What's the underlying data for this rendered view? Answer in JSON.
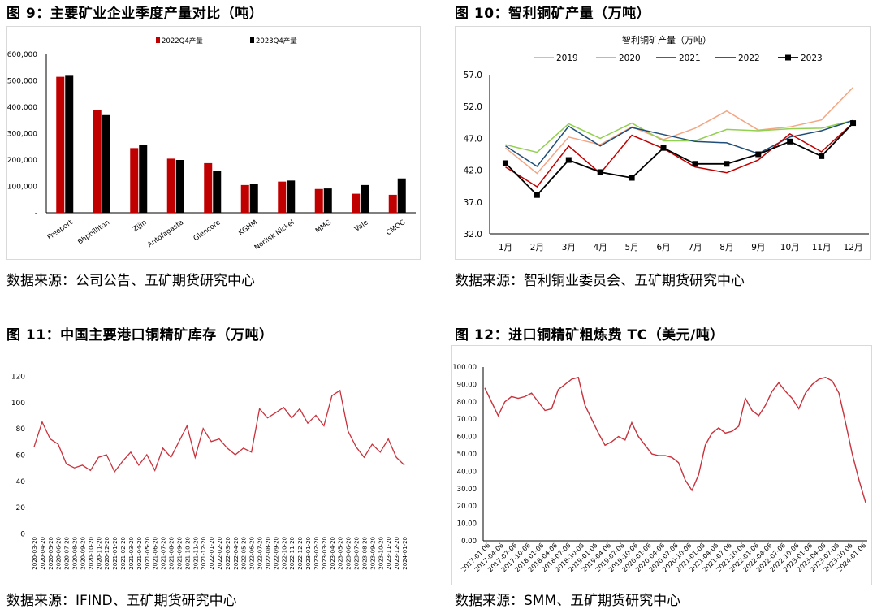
{
  "panels": [
    {
      "title": "图 9：主要矿业企业季度产量对比（吨）",
      "source": "数据来源：公司公告、五矿期货研究中心"
    },
    {
      "title": "图 10：智利铜矿产量（万吨）",
      "source": "数据来源：智利铜业委员会、五矿期货研究中心"
    },
    {
      "title": "图 11：中国主要港口铜精矿库存（万吨）",
      "source": "数据来源：IFIND、五矿期货研究中心"
    },
    {
      "title": "图 12：进口铜精矿粗炼费 TC（美元/吨）",
      "source": "数据来源：SMM、五矿期货研究中心"
    }
  ],
  "colors": {
    "red": "#c00000",
    "black": "#000000",
    "c2019": "#f4a582",
    "c2020": "#92d050",
    "c2021": "#1f4e79",
    "c2022": "#c00000",
    "c2023": "#000000",
    "line": "#c8323c"
  },
  "chart_data": [
    {
      "type": "bar",
      "title": "",
      "categories": [
        "Freeport",
        "Bhpbilliton",
        "Zijin",
        "Antofagasta",
        "Glencore",
        "KGHM",
        "Norilsk Nickel",
        "MMG",
        "Vale",
        "CMOC"
      ],
      "series": [
        {
          "name": "2022Q4产量",
          "values": [
            515000,
            390000,
            245000,
            205000,
            188000,
            105000,
            118000,
            90000,
            72000,
            68000
          ]
        },
        {
          "name": "2023Q4产量",
          "values": [
            522000,
            370000,
            256000,
            200000,
            160000,
            108000,
            122000,
            92000,
            105000,
            130000
          ]
        }
      ],
      "yticks": [
        "-",
        "100,000",
        "200,000",
        "300,000",
        "400,000",
        "500,000",
        "600,000"
      ],
      "ylim": [
        0,
        600000
      ],
      "legend": "top"
    },
    {
      "type": "line",
      "title": "智利铜矿产量（万吨）",
      "categories": [
        "1月",
        "2月",
        "3月",
        "4月",
        "5月",
        "6月",
        "7月",
        "8月",
        "9月",
        "10月",
        "11月",
        "12月"
      ],
      "series": [
        {
          "name": "2019",
          "values": [
            45.5,
            41.5,
            47.2,
            46.0,
            48.8,
            46.8,
            48.6,
            51.3,
            48.3,
            48.8,
            49.9,
            55.0
          ]
        },
        {
          "name": "2020",
          "values": [
            46.0,
            44.8,
            49.3,
            47.0,
            49.4,
            46.6,
            46.6,
            48.4,
            48.2,
            48.5,
            48.6,
            49.8
          ]
        },
        {
          "name": "2021",
          "values": [
            45.8,
            42.6,
            48.9,
            45.8,
            48.7,
            47.6,
            46.5,
            46.3,
            44.6,
            47.2,
            48.2,
            49.8
          ]
        },
        {
          "name": "2022",
          "values": [
            42.5,
            39.4,
            45.8,
            41.5,
            47.5,
            45.4,
            42.5,
            41.6,
            43.6,
            47.7,
            44.9,
            49.4
          ]
        },
        {
          "name": "2023",
          "values": [
            43.1,
            38.1,
            43.6,
            41.7,
            40.8,
            45.5,
            43.0,
            43.0,
            44.5,
            46.5,
            44.2,
            49.4
          ]
        }
      ],
      "yticks": [
        "32.0",
        "37.0",
        "42.0",
        "47.0",
        "52.0",
        "57.0"
      ],
      "ylim": [
        32,
        57
      ],
      "legend": "top"
    },
    {
      "type": "line",
      "title": "",
      "x": [
        "2020-03-20",
        "2020-04-20",
        "2020-05-20",
        "2020-06-20",
        "2020-07-20",
        "2020-08-20",
        "2020-09-20",
        "2020-10-20",
        "2020-11-20",
        "2020-12-20",
        "2021-01-20",
        "2021-02-20",
        "2021-03-20",
        "2021-04-20",
        "2021-05-20",
        "2021-06-20",
        "2021-07-20",
        "2021-08-20",
        "2021-09-20",
        "2021-10-20",
        "2021-11-20",
        "2021-12-20",
        "2022-01-20",
        "2022-02-20",
        "2022-03-20",
        "2022-04-20",
        "2022-05-20",
        "2022-06-20",
        "2022-07-20",
        "2022-08-20",
        "2022-09-20",
        "2022-10-20",
        "2022-11-20",
        "2022-12-20",
        "2023-01-20",
        "2023-02-20",
        "2023-03-20",
        "2023-04-20",
        "2023-05-20",
        "2023-06-20",
        "2023-07-20",
        "2023-08-20",
        "2023-09-20",
        "2023-10-20",
        "2023-11-20",
        "2023-12-20",
        "2024-01-20"
      ],
      "values": [
        66,
        85,
        72,
        68,
        53,
        50,
        52,
        48,
        58,
        60,
        47,
        55,
        62,
        52,
        60,
        48,
        65,
        58,
        70,
        82,
        58,
        80,
        70,
        72,
        65,
        60,
        65,
        62,
        95,
        88,
        92,
        96,
        88,
        95,
        84,
        90,
        82,
        105,
        109,
        78,
        66,
        58,
        68,
        62,
        72,
        58,
        52
      ],
      "xticks": [
        "2020-03-20",
        "2020-04-20",
        "2020-05-20",
        "2020-06-20",
        "2020-07-20",
        "2020-08-20",
        "2020-09-20",
        "2020-10-20",
        "2020-11-20",
        "2020-12-20",
        "2021-01-20",
        "2021-02-20",
        "2021-03-20",
        "2021-04-20",
        "2021-05-20",
        "2021-06-20",
        "2021-07-20",
        "2021-08-20",
        "2021-09-20",
        "2021-10-20",
        "2021-11-20",
        "2021-12-20",
        "2022-01-20",
        "2022-02-20",
        "2022-03-20",
        "2022-04-20",
        "2022-05-20",
        "2022-06-20",
        "2022-07-20",
        "2022-08-20",
        "2022-09-20",
        "2022-10-20",
        "2022-11-20",
        "2022-12-20",
        "2023-01-20",
        "2023-02-20",
        "2023-03-20",
        "2023-04-20",
        "2023-05-20",
        "2023-06-20",
        "2023-07-20",
        "2023-08-20",
        "2023-09-20",
        "2023-10-20",
        "2023-11-20",
        "2023-12-20",
        "2024-01-20"
      ],
      "yticks": [
        "0",
        "20",
        "40",
        "60",
        "80",
        "100",
        "120"
      ],
      "ylim": [
        0,
        120
      ],
      "grid": false
    },
    {
      "type": "line",
      "title": "",
      "x": [
        "2017-01-06",
        "2017-02-17",
        "2017-04-06",
        "2017-05-26",
        "2017-07-06",
        "2017-08-25",
        "2017-10-06",
        "2017-11-24",
        "2018-01-06",
        "2018-02-23",
        "2018-04-06",
        "2018-05-25",
        "2018-07-06",
        "2018-08-24",
        "2018-10-06",
        "2018-11-23",
        "2019-01-06",
        "2019-02-22",
        "2019-04-06",
        "2019-05-24",
        "2019-07-06",
        "2019-08-23",
        "2019-10-06",
        "2019-11-22",
        "2020-01-06",
        "2020-02-21",
        "2020-04-06",
        "2020-05-22",
        "2020-07-06",
        "2020-08-21",
        "2020-10-06",
        "2020-11-20",
        "2021-01-06",
        "2021-02-19",
        "2021-04-06",
        "2021-05-21",
        "2021-07-06",
        "2021-08-20",
        "2021-10-06",
        "2021-11-19",
        "2022-01-06",
        "2022-02-18",
        "2022-04-06",
        "2022-05-20",
        "2022-07-06",
        "2022-08-19",
        "2022-10-06",
        "2022-11-18",
        "2023-01-06",
        "2023-02-17",
        "2023-04-06",
        "2023-05-19",
        "2023-07-06",
        "2023-08-18",
        "2023-10-06",
        "2023-11-17",
        "2024-01-06",
        "2024-01-26"
      ],
      "values": [
        88,
        80,
        72,
        80,
        83,
        82,
        83,
        85,
        80,
        75,
        76,
        87,
        90,
        93,
        94,
        78,
        70,
        62,
        55,
        57,
        60,
        58,
        68,
        60,
        55,
        50,
        49,
        49,
        48,
        45,
        35,
        29,
        38,
        55,
        62,
        65,
        62,
        63,
        66,
        82,
        75,
        72,
        78,
        86,
        91,
        86,
        82,
        76,
        85,
        90,
        93,
        94,
        92,
        85,
        68,
        50,
        35,
        22
      ],
      "xticks": [
        "2017-01-06",
        "2017-04-06",
        "2017-07-06",
        "2017-10-06",
        "2018-01-06",
        "2018-04-06",
        "2018-07-06",
        "2018-10-06",
        "2019-01-06",
        "2019-04-06",
        "2019-07-06",
        "2019-10-06",
        "2020-01-06",
        "2020-04-06",
        "2020-07-06",
        "2020-10-06",
        "2021-01-06",
        "2021-04-06",
        "2021-07-06",
        "2021-10-06",
        "2022-01-06",
        "2022-04-06",
        "2022-07-06",
        "2022-10-06",
        "2023-01-06",
        "2023-04-06",
        "2023-07-06",
        "2023-10-06",
        "2024-01-06"
      ],
      "yticks": [
        "0.00",
        "10.00",
        "20.00",
        "30.00",
        "40.00",
        "50.00",
        "60.00",
        "70.00",
        "80.00",
        "90.00",
        "100.00"
      ],
      "ylim": [
        0,
        100
      ],
      "grid": false
    }
  ]
}
